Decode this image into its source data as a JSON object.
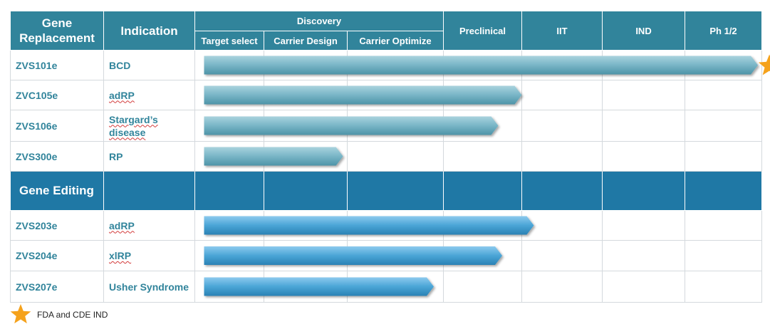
{
  "header": {
    "col1": "Gene Replacement",
    "col2": "Indication",
    "discovery": "Discovery",
    "sub1": "Target select",
    "sub2": "Carrier Design",
    "sub3": "Carrier Optimize",
    "preclinical": "Preclinical",
    "iit": "IIT",
    "ind": "IND",
    "ph12": "Ph 1/2"
  },
  "section2": "Gene Editing",
  "legend": {
    "text": "FDA and CDE IND",
    "icon": "star-icon"
  },
  "colors": {
    "header": "#31849b",
    "section": "#1f78a5",
    "bar_replacement": "#6fb3c4",
    "bar_editing": "#4aa5d6",
    "star": "#f5a21c"
  },
  "stages": [
    "Target select",
    "Carrier Design",
    "Carrier Optimize",
    "Preclinical",
    "IIT",
    "IND",
    "Ph 1/2"
  ],
  "chart_data": {
    "type": "bar",
    "groups": [
      {
        "name": "Gene Replacement",
        "programs": [
          {
            "id": "ZVS101e",
            "indication": "BCD",
            "progress": 6.95,
            "star": true
          },
          {
            "id": "ZVC105e",
            "indication": "adRP",
            "progress": 4.0
          },
          {
            "id": "ZVS106e",
            "indication": "Stargard’s disease",
            "progress": 3.7
          },
          {
            "id": "ZVS300e",
            "indication": "RP",
            "progress": 1.95
          }
        ]
      },
      {
        "name": "Gene Editing",
        "programs": [
          {
            "id": "ZVS203e",
            "indication": "adRP",
            "progress": 4.15
          },
          {
            "id": "ZVS204e",
            "indication": "xlRP",
            "progress": 3.75
          },
          {
            "id": "ZVS207e",
            "indication": "Usher Syndrome",
            "progress": 2.9
          }
        ]
      }
    ]
  }
}
